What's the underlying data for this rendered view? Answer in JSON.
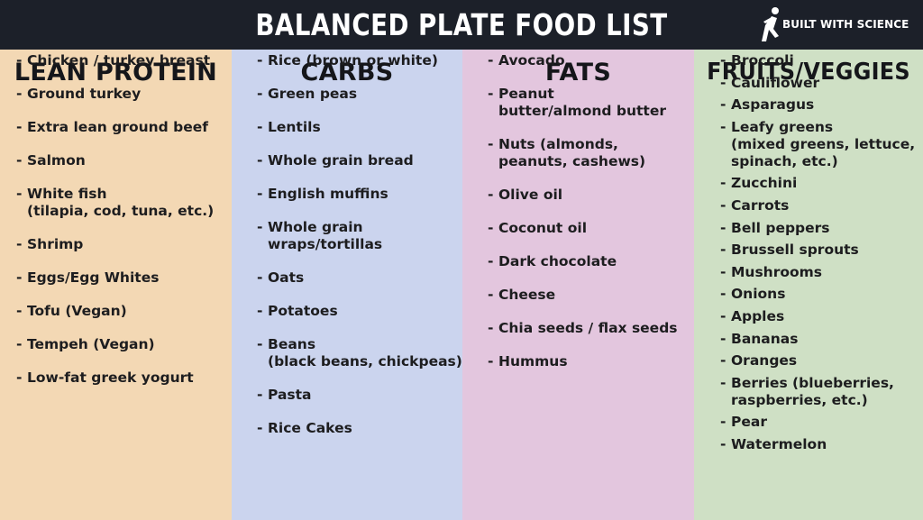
{
  "header": {
    "title": "BALANCED PLATE FOOD LIST",
    "brand": "BUILT WITH SCIENCE",
    "brand_icon": "running-person-logo"
  },
  "columns": {
    "protein": {
      "title": "LEAN PROTEIN",
      "color": "#f3d8b4",
      "items": [
        [
          "Chicken / turkey breast"
        ],
        [
          "Ground turkey"
        ],
        [
          "Extra lean ground beef"
        ],
        [
          "Salmon"
        ],
        [
          "White fish",
          "(tilapia, cod, tuna, etc.)"
        ],
        [
          "Shrimp"
        ],
        [
          "Eggs/Egg Whites"
        ],
        [
          "Tofu (Vegan)"
        ],
        [
          "Tempeh (Vegan)"
        ],
        [
          "Low-fat greek yogurt"
        ]
      ]
    },
    "carbs": {
      "title": "CARBS",
      "color": "#cbd4ee",
      "items": [
        [
          "Rice (brown or white)"
        ],
        [
          "Green peas"
        ],
        [
          "Lentils"
        ],
        [
          "Whole grain bread"
        ],
        [
          "English muffins"
        ],
        [
          "Whole grain",
          "wraps/tortillas"
        ],
        [
          "Oats"
        ],
        [
          "Potatoes"
        ],
        [
          "Beans",
          "(black beans, chickpeas)"
        ],
        [
          "Pasta"
        ],
        [
          "Rice Cakes"
        ]
      ]
    },
    "fats": {
      "title": "FATS",
      "color": "#e3c6de",
      "items": [
        [
          "Avocado"
        ],
        [
          "Peanut",
          "butter/almond butter"
        ],
        [
          "Nuts (almonds,",
          "peanuts, cashews)"
        ],
        [
          "Olive oil"
        ],
        [
          "Coconut oil"
        ],
        [
          "Dark chocolate"
        ],
        [
          "Cheese"
        ],
        [
          "Chia seeds / flax seeds"
        ],
        [
          "Hummus"
        ]
      ]
    },
    "veg": {
      "title": "FRUITS/VEGGIES",
      "color": "#cfe0c5",
      "items": [
        [
          "Broccoli"
        ],
        [
          "Cauliflower"
        ],
        [
          "Asparagus"
        ],
        [
          "Leafy greens",
          "(mixed greens, lettuce,",
          "spinach, etc.)"
        ],
        [
          "Zucchini"
        ],
        [
          "Carrots"
        ],
        [
          "Bell peppers"
        ],
        [
          "Brussell sprouts"
        ],
        [
          "Mushrooms"
        ],
        [
          "Onions"
        ],
        [
          "Apples"
        ],
        [
          "Bananas"
        ],
        [
          "Oranges"
        ],
        [
          "Berries (blueberries,",
          "raspberries, etc.)"
        ],
        [
          "Pear"
        ],
        [
          "Watermelon"
        ]
      ]
    }
  }
}
